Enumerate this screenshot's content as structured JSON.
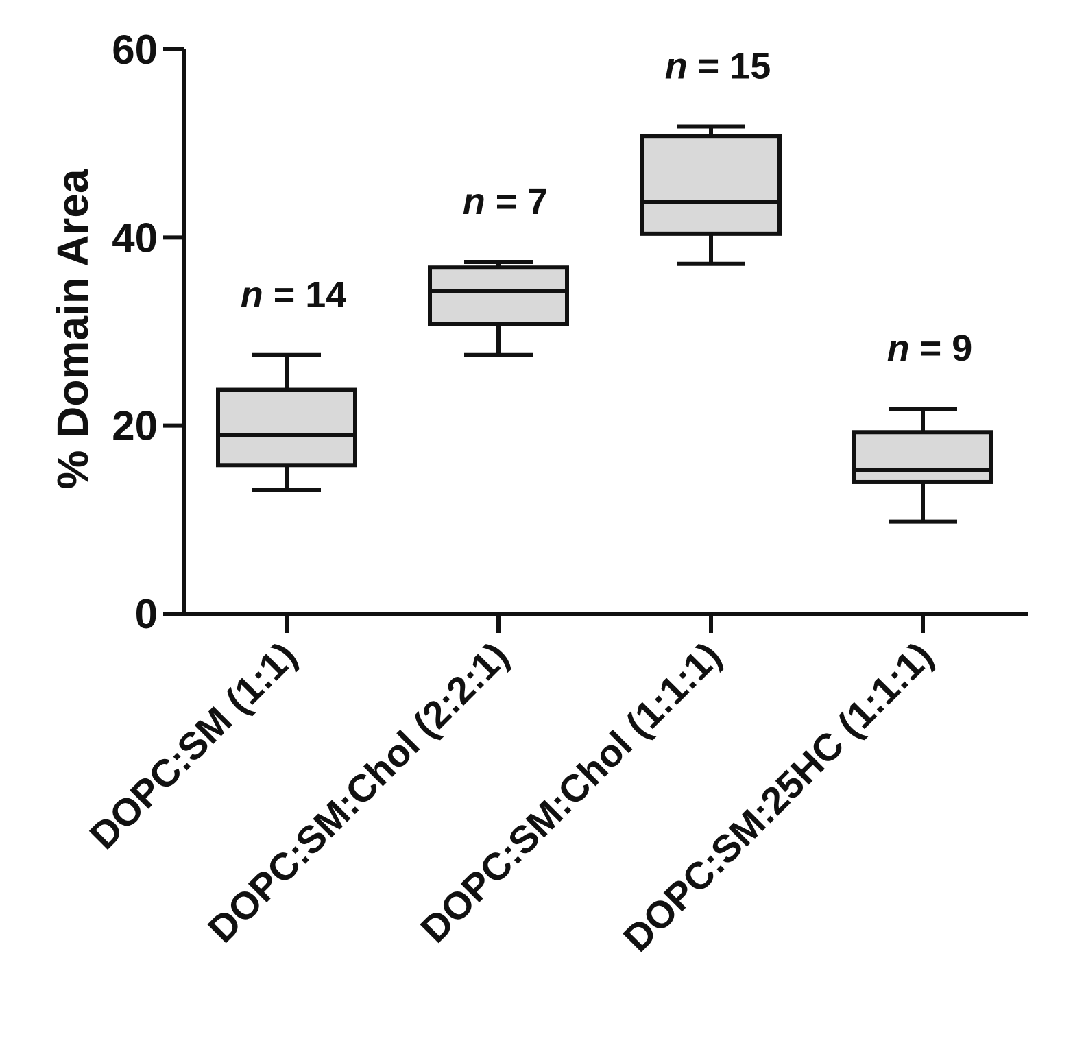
{
  "chart_data": {
    "type": "box",
    "ylabel": "% Domain Area",
    "xlabel": "",
    "ylim": [
      0,
      60
    ],
    "yticks": [
      0,
      20,
      40,
      60
    ],
    "grid": false,
    "box_fill": "#d9d9d9",
    "stroke_color": "#111111",
    "categories": [
      "DOPC:SM (1:1)",
      "DOPC:SM:Chol (2:2:1)",
      "DOPC:SM:Chol (1:1:1)",
      "DOPC:SM:25HC (1:1:1)"
    ],
    "boxes": [
      {
        "category": "DOPC:SM (1:1)",
        "min": 13.2,
        "q1": 15.8,
        "median": 19.0,
        "q3": 23.8,
        "max": 27.5,
        "n_prefix": "n",
        "n_text": " = 14"
      },
      {
        "category": "DOPC:SM:Chol (2:2:1)",
        "min": 27.5,
        "q1": 30.8,
        "median": 34.3,
        "q3": 36.8,
        "max": 37.4,
        "n_prefix": "n",
        "n_text": " = 7"
      },
      {
        "category": "DOPC:SM:Chol (1:1:1)",
        "min": 37.2,
        "q1": 40.4,
        "median": 43.8,
        "q3": 50.8,
        "max": 51.8,
        "n_prefix": "n",
        "n_text": " = 15"
      },
      {
        "category": "DOPC:SM:25HC (1:1:1)",
        "min": 9.8,
        "q1": 14.0,
        "median": 15.3,
        "q3": 19.3,
        "max": 21.8,
        "n_prefix": "n",
        "n_text": " = 9"
      }
    ]
  }
}
